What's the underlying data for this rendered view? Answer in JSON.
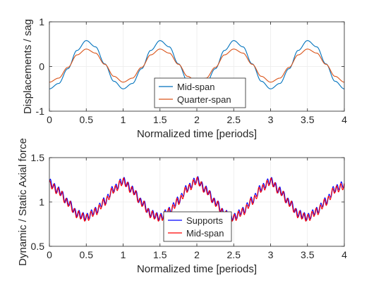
{
  "chart_data": [
    {
      "type": "line",
      "xlabel": "Normalized time [periods]",
      "ylabel": "Displacements / sag",
      "xlim": [
        0,
        4
      ],
      "ylim": [
        -1,
        1
      ],
      "xticks": [
        0,
        0.5,
        1,
        1.5,
        2,
        2.5,
        3,
        3.5,
        4
      ],
      "xtick_labels": [
        "0",
        "0.5",
        "1",
        "1.5",
        "2",
        "2.5",
        "3",
        "3.5",
        "4"
      ],
      "yticks": [
        -1,
        0,
        1
      ],
      "ytick_labels": [
        "-1",
        "0",
        "1"
      ],
      "grid": true,
      "legend_position": "bottom-center",
      "x": [
        0,
        0.125,
        0.25,
        0.375,
        0.5,
        0.625,
        0.75,
        0.875,
        1,
        1.125,
        1.25,
        1.375,
        1.5,
        1.625,
        1.75,
        1.875,
        2,
        2.125,
        2.25,
        2.375,
        2.5,
        2.625,
        2.75,
        2.875,
        3,
        3.125,
        3.25,
        3.375,
        3.5,
        3.625,
        3.75,
        3.875,
        4
      ],
      "series": [
        {
          "name": "Mid-span",
          "color": "#0072BD",
          "values": [
            -0.5,
            -0.38,
            -0.05,
            0.36,
            0.58,
            0.44,
            0.06,
            -0.33,
            -0.5,
            -0.38,
            -0.05,
            0.36,
            0.58,
            0.44,
            0.06,
            -0.33,
            -0.5,
            -0.38,
            -0.05,
            0.36,
            0.58,
            0.44,
            0.06,
            -0.33,
            -0.5,
            -0.38,
            -0.05,
            0.36,
            0.58,
            0.44,
            0.06,
            -0.33,
            -0.5
          ]
        },
        {
          "name": "Quarter-span",
          "color": "#D95319",
          "values": [
            -0.35,
            -0.26,
            -0.02,
            0.26,
            0.39,
            0.3,
            0.05,
            -0.22,
            -0.35,
            -0.26,
            -0.02,
            0.26,
            0.39,
            0.3,
            0.05,
            -0.22,
            -0.35,
            -0.26,
            -0.02,
            0.26,
            0.39,
            0.3,
            0.05,
            -0.22,
            -0.35,
            -0.26,
            -0.02,
            0.26,
            0.39,
            0.3,
            0.05,
            -0.22,
            -0.35
          ]
        }
      ]
    },
    {
      "type": "line",
      "xlabel": "Normalized time [periods]",
      "ylabel": "Dynamic / Static Axial force",
      "xlim": [
        0,
        4
      ],
      "ylim": [
        0.5,
        1.5
      ],
      "xticks": [
        0,
        0.5,
        1,
        1.5,
        2,
        2.5,
        3,
        3.5,
        4
      ],
      "xtick_labels": [
        "0",
        "0.5",
        "1",
        "1.5",
        "2",
        "2.5",
        "3",
        "3.5",
        "4"
      ],
      "yticks": [
        0.5,
        1,
        1.5
      ],
      "ytick_labels": [
        "0.5",
        "1",
        "1.5"
      ],
      "grid": true,
      "legend_position": "bottom-center",
      "x": [
        0,
        0.125,
        0.25,
        0.375,
        0.5,
        0.625,
        0.75,
        0.875,
        1,
        1.125,
        1.25,
        1.375,
        1.5,
        1.625,
        1.75,
        1.875,
        2,
        2.125,
        2.25,
        2.375,
        2.5,
        2.625,
        2.75,
        2.875,
        3,
        3.125,
        3.25,
        3.375,
        3.5,
        3.625,
        3.75,
        3.875,
        4
      ],
      "series": [
        {
          "name": "Supports",
          "color": "#0000FF",
          "values": [
            1.22,
            1.13,
            1.0,
            0.87,
            0.83,
            0.9,
            1.01,
            1.15,
            1.24,
            1.14,
            1.0,
            0.87,
            0.83,
            0.9,
            1.02,
            1.16,
            1.25,
            1.14,
            1.0,
            0.87,
            0.83,
            0.9,
            1.02,
            1.16,
            1.24,
            1.13,
            1.0,
            0.87,
            0.83,
            0.9,
            1.01,
            1.15,
            1.2
          ],
          "oscillation_amplitude": 0.04,
          "oscillations_per_period": 18
        },
        {
          "name": "Mid-span",
          "color": "#FF0000",
          "values": [
            1.2,
            1.12,
            0.99,
            0.86,
            0.82,
            0.89,
            1.0,
            1.14,
            1.23,
            1.13,
            0.99,
            0.86,
            0.82,
            0.89,
            1.01,
            1.15,
            1.24,
            1.13,
            0.99,
            0.86,
            0.82,
            0.89,
            1.01,
            1.15,
            1.23,
            1.12,
            0.99,
            0.86,
            0.82,
            0.89,
            1.0,
            1.14,
            1.18
          ],
          "oscillation_amplitude": 0.04,
          "oscillations_per_period": 18
        }
      ]
    }
  ]
}
